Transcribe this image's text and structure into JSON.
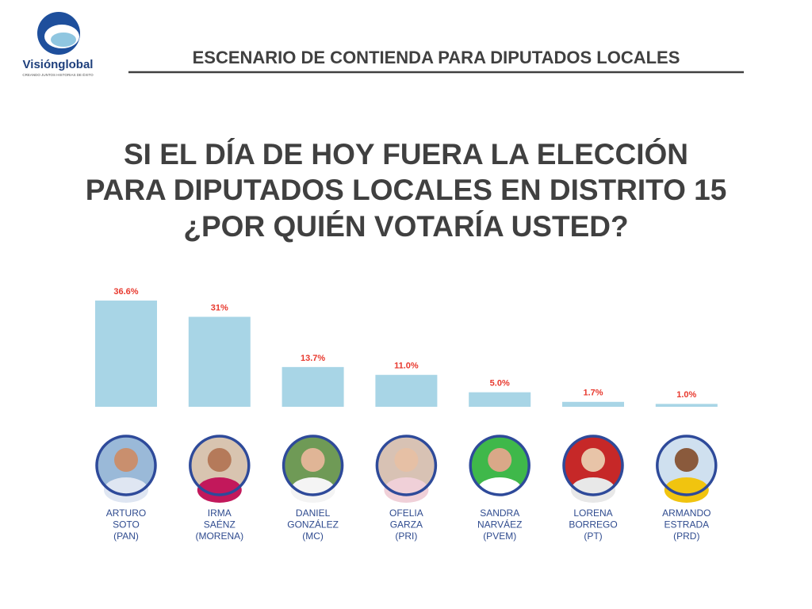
{
  "logo": {
    "name": "Visiónglobal",
    "tagline": "CREANDO JUNTOS HISTORIAS DE ÉXITO"
  },
  "header": {
    "title": "ESCENARIO DE CONTIENDA PARA DIPUTADOS LOCALES"
  },
  "question": [
    "SI EL DÍA DE HOY FUERA LA ELECCIÓN",
    "PARA DIPUTADOS LOCALES EN DISTRITO 15",
    "¿POR QUIÉN VOTARÍA USTED?"
  ],
  "chart_data": {
    "type": "bar",
    "categories": [
      [
        "ARTURO",
        "SOTO",
        "(PAN)"
      ],
      [
        "IRMA",
        "SAÉNZ",
        "(MORENA)"
      ],
      [
        "DANIEL",
        "GONZÁLEZ",
        "(MC)"
      ],
      [
        "OFELIA",
        "GARZA",
        "(PRI)"
      ],
      [
        "SANDRA",
        "NARVÁEZ",
        "(PVEM)"
      ],
      [
        "LORENA",
        "BORREGO",
        "(PT)"
      ],
      [
        "ARMANDO",
        "ESTRADA",
        "(PRD)"
      ]
    ],
    "values": [
      36.6,
      31,
      13.7,
      11.0,
      5.0,
      1.7,
      1.0
    ],
    "value_labels": [
      "36.6%",
      "31%",
      "13.7%",
      "11.0%",
      "5.0%",
      "1.7%",
      "1.0%"
    ],
    "color": "#a8d5e6"
  }
}
